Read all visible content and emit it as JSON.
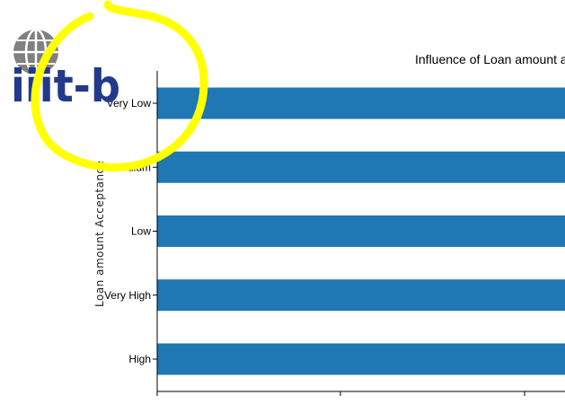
{
  "chart_data": {
    "type": "bar",
    "orientation": "horizontal",
    "title": "Influence of Loan amount asl",
    "ylabel": "Loan amount Acceptance",
    "xlabel": "",
    "categories": [
      "Very Low",
      "Medium",
      "Low",
      "Very High",
      "High"
    ],
    "values": [
      1,
      1,
      1,
      1,
      1
    ],
    "grid": false,
    "bar_color": "#1f77b4",
    "clipped_right": true
  },
  "overlay": {
    "logo_text": "iiit-b",
    "circle_color": "#ffff00"
  }
}
